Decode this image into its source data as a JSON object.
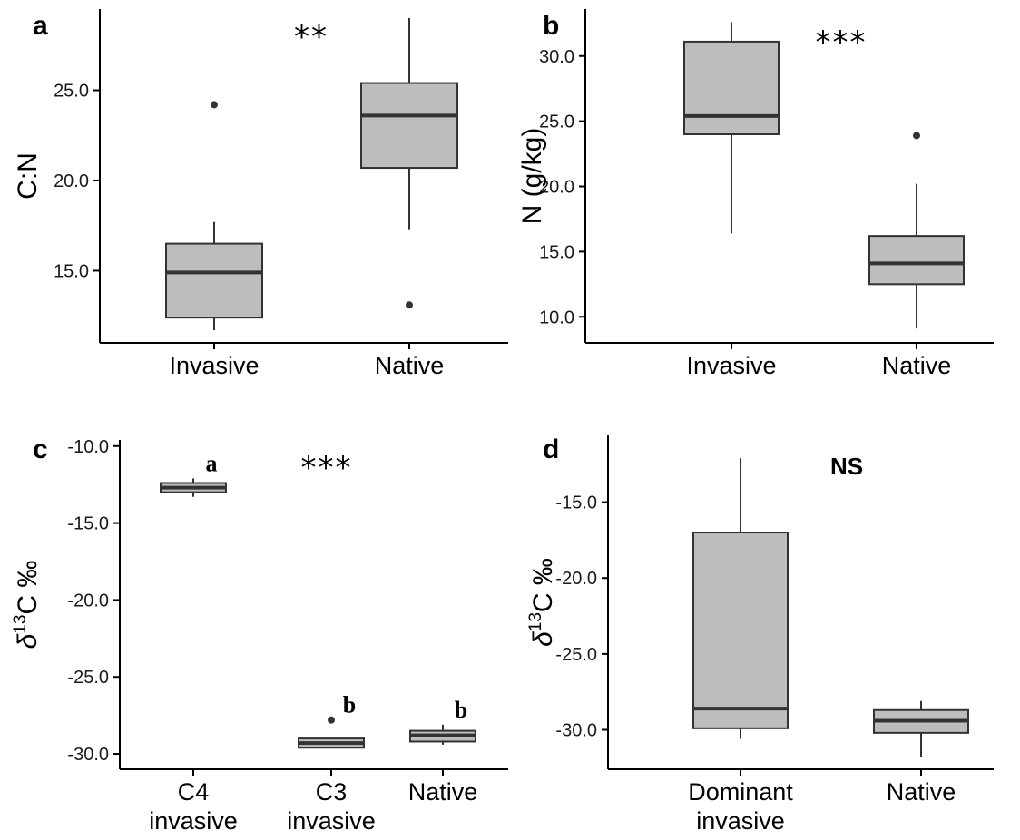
{
  "colors": {
    "box_fill": "#bdbdbd",
    "stroke": "#333333",
    "axis": "#000000"
  },
  "chart_data": [
    {
      "panel": "a",
      "type": "box",
      "ylabel": "C:N",
      "significance": "**",
      "ylim": [
        11.0,
        29.5
      ],
      "yticks": [
        15.0,
        20.0,
        25.0
      ],
      "ytick_labels": [
        "15.0",
        "20.0",
        "25.0"
      ],
      "categories": [
        [
          "Invasive"
        ],
        [
          "Native"
        ]
      ],
      "boxes": [
        {
          "whisker_low": 11.7,
          "q1": 12.4,
          "median": 14.9,
          "q3": 16.5,
          "whisker_high": 17.7,
          "outliers": [
            24.2
          ],
          "group_letter": ""
        },
        {
          "whisker_low": 17.3,
          "q1": 20.7,
          "median": 23.6,
          "q3": 25.4,
          "whisker_high": 29.0,
          "outliers": [
            13.1
          ],
          "group_letter": ""
        }
      ]
    },
    {
      "panel": "b",
      "type": "box",
      "ylabel": "N (g/kg)",
      "significance": "***",
      "ylim": [
        8.0,
        33.6
      ],
      "yticks": [
        10.0,
        15.0,
        20.0,
        25.0,
        30.0
      ],
      "ytick_labels": [
        "10.0",
        "15.0",
        "20.0",
        "25.0",
        "30.0"
      ],
      "categories": [
        [
          "Invasive"
        ],
        [
          "Native"
        ]
      ],
      "boxes": [
        {
          "whisker_low": 16.4,
          "q1": 24.0,
          "median": 25.4,
          "q3": 31.1,
          "whisker_high": 32.6,
          "outliers": [],
          "group_letter": ""
        },
        {
          "whisker_low": 9.1,
          "q1": 12.5,
          "median": 14.1,
          "q3": 16.2,
          "whisker_high": 20.2,
          "outliers": [
            23.9
          ],
          "group_letter": ""
        }
      ]
    },
    {
      "panel": "c",
      "type": "box",
      "ylabel_symbol": "δ",
      "ylabel_sup": "13",
      "ylabel_rest": "C ‰",
      "significance": "***",
      "ylim": [
        -31.0,
        -9.6
      ],
      "yticks": [
        -30.0,
        -25.0,
        -20.0,
        -15.0,
        -10.0
      ],
      "ytick_labels": [
        "-30.0",
        "-25.0",
        "-20.0",
        "-15.0",
        "-10.0"
      ],
      "categories": [
        [
          "C4",
          "invasive"
        ],
        [
          "C3",
          "invasive"
        ],
        [
          "Native"
        ]
      ],
      "boxes": [
        {
          "whisker_low": -13.3,
          "q1": -13.0,
          "median": -12.7,
          "q3": -12.4,
          "whisker_high": -12.1,
          "outliers": [],
          "group_letter": "a"
        },
        {
          "whisker_low": -29.6,
          "q1": -29.6,
          "median": -29.3,
          "q3": -29.0,
          "whisker_high": -29.0,
          "outliers": [
            -27.8
          ],
          "group_letter": "b"
        },
        {
          "whisker_low": -29.4,
          "q1": -29.2,
          "median": -28.8,
          "q3": -28.5,
          "whisker_high": -28.1,
          "outliers": [],
          "group_letter": "b"
        }
      ]
    },
    {
      "panel": "d",
      "type": "box",
      "ylabel_symbol": "δ",
      "ylabel_sup": "13",
      "ylabel_rest": "C ‰",
      "significance": "NS",
      "ylim": [
        -32.6,
        -10.6
      ],
      "yticks": [
        -30.0,
        -25.0,
        -20.0,
        -15.0
      ],
      "ytick_labels": [
        "-30.0",
        "-25.0",
        "-20.0",
        "-15.0"
      ],
      "categories": [
        [
          "Dominant",
          "invasive"
        ],
        [
          "Native"
        ]
      ],
      "boxes": [
        {
          "whisker_low": -30.6,
          "q1": -29.9,
          "median": -28.6,
          "q3": -17.0,
          "whisker_high": -12.1,
          "outliers": [],
          "group_letter": ""
        },
        {
          "whisker_low": -31.8,
          "q1": -30.2,
          "median": -29.4,
          "q3": -28.7,
          "whisker_high": -28.1,
          "outliers": [],
          "group_letter": ""
        }
      ]
    }
  ]
}
